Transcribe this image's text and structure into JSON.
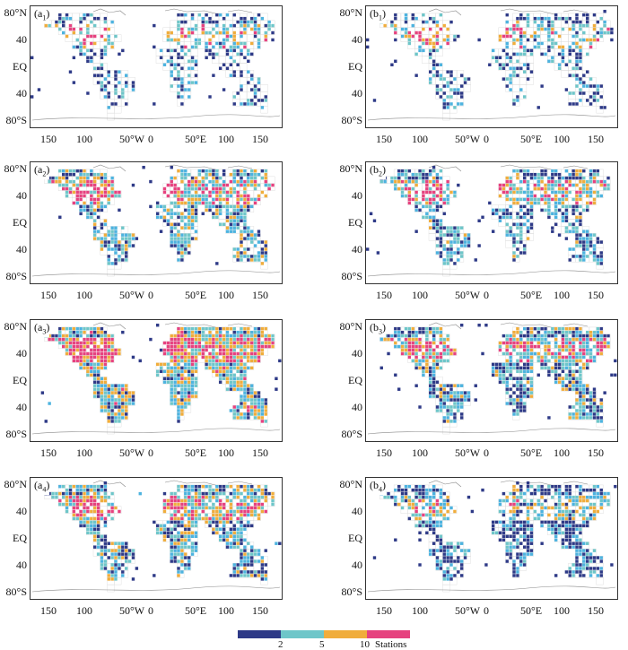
{
  "panels": [
    {
      "id": "a1",
      "letter": "a",
      "sub": "1",
      "seed": 11,
      "density": 0.48,
      "warm": 0.3
    },
    {
      "id": "b1",
      "letter": "b",
      "sub": "1",
      "seed": 23,
      "density": 0.45,
      "warm": 0.32
    },
    {
      "id": "a2",
      "letter": "a",
      "sub": "2",
      "seed": 37,
      "density": 0.72,
      "warm": 0.6
    },
    {
      "id": "b2",
      "letter": "b",
      "sub": "2",
      "seed": 41,
      "density": 0.7,
      "warm": 0.42
    },
    {
      "id": "a3",
      "letter": "a",
      "sub": "3",
      "seed": 53,
      "density": 0.9,
      "warm": 0.75
    },
    {
      "id": "b3",
      "letter": "b",
      "sub": "3",
      "seed": 67,
      "density": 0.82,
      "warm": 0.48
    },
    {
      "id": "a4",
      "letter": "a",
      "sub": "4",
      "seed": 79,
      "density": 0.8,
      "warm": 0.55
    },
    {
      "id": "b4",
      "letter": "b",
      "sub": "4",
      "seed": 83,
      "density": 0.68,
      "warm": 0.18
    }
  ],
  "y_labels": [
    "80°N",
    "40",
    "EQ",
    "40",
    "80°S"
  ],
  "x_labels": [
    "150",
    "100",
    "50°W",
    "0",
    "50°E",
    "100",
    "150"
  ],
  "colorbar": {
    "colors": [
      "#2e3a87",
      "#6ec6c9",
      "#f0ad3c",
      "#e6427f"
    ],
    "tick_labels": [
      "2",
      "5",
      "10"
    ],
    "unit": "Stations"
  },
  "colors": {
    "low": "#2e3a87",
    "mid_low": "#4db3df",
    "mid": "#6ec6c9",
    "high": "#f0ad3c",
    "top": "#e6427f",
    "coast": "#888888"
  }
}
